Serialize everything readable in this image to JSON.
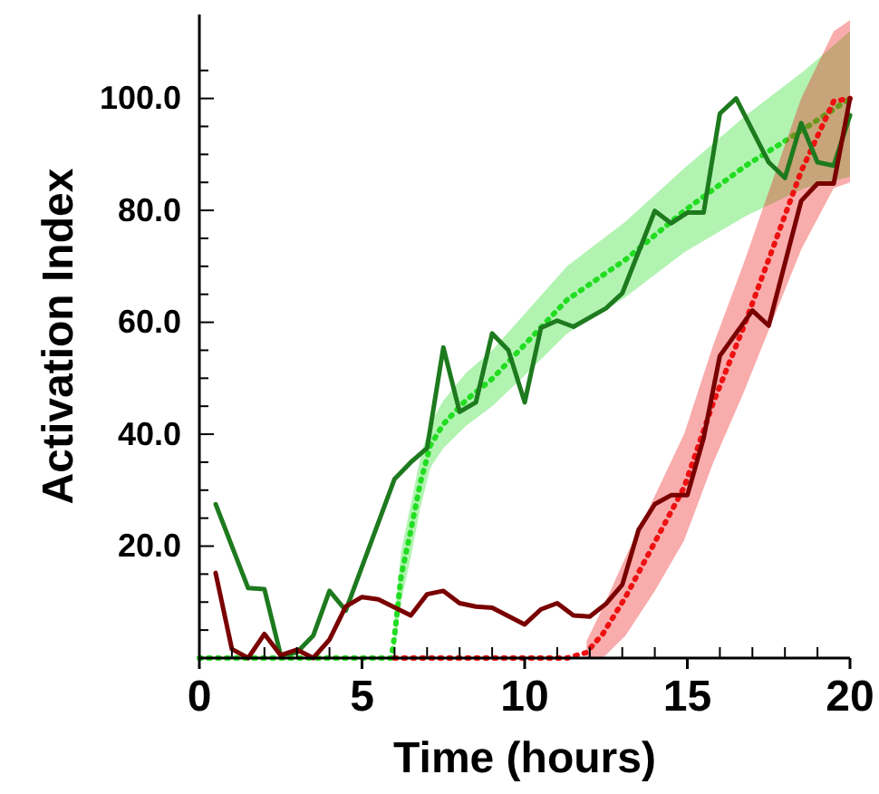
{
  "chart_data": {
    "type": "line",
    "xlabel": "Time (hours)",
    "ylabel": "Activation Index",
    "xlim": [
      0,
      20
    ],
    "ylim": [
      0,
      115
    ],
    "xticks": [
      0,
      {
        "value": 1,
        "label": null
      },
      {
        "value": 2,
        "label": null
      },
      {
        "value": 3,
        "label": null
      },
      {
        "value": 4,
        "label": null
      },
      5,
      {
        "value": 6,
        "label": null
      },
      {
        "value": 7,
        "label": null
      },
      {
        "value": 8,
        "label": null
      },
      {
        "value": 9,
        "label": null
      },
      10,
      {
        "value": 11,
        "label": null
      },
      {
        "value": 12,
        "label": null
      },
      {
        "value": 13,
        "label": null
      },
      {
        "value": 14,
        "label": null
      },
      15,
      {
        "value": 16,
        "label": null
      },
      {
        "value": 17,
        "label": null
      },
      {
        "value": 18,
        "label": null
      },
      {
        "value": 19,
        "label": null
      },
      20
    ],
    "yticks": [
      {
        "value": 5,
        "label": null
      },
      {
        "value": 10,
        "label": null
      },
      {
        "value": 15,
        "label": null
      },
      {
        "value": 20,
        "label": "20.0"
      },
      {
        "value": 25,
        "label": null
      },
      {
        "value": 30,
        "label": null
      },
      {
        "value": 35,
        "label": null
      },
      {
        "value": 40,
        "label": "40.0"
      },
      {
        "value": 45,
        "label": null
      },
      {
        "value": 50,
        "label": null
      },
      {
        "value": 55,
        "label": null
      },
      {
        "value": 60,
        "label": "60.0"
      },
      {
        "value": 65,
        "label": null
      },
      {
        "value": 70,
        "label": null
      },
      {
        "value": 75,
        "label": null
      },
      {
        "value": 80,
        "label": "80.0"
      },
      {
        "value": 85,
        "label": null
      },
      {
        "value": 90,
        "label": null
      },
      {
        "value": 95,
        "label": null
      },
      {
        "value": 100,
        "label": "100.0"
      },
      {
        "value": 105,
        "label": null
      }
    ],
    "grid": false,
    "marker": "none",
    "series": [
      {
        "line_style": "dotted",
        "color": "#22dd22",
        "x": [
          0,
          5.9,
          6.0,
          6.2,
          6.5,
          6.8,
          7.1,
          7.5,
          8.2,
          9,
          10,
          11.3,
          13.1,
          14.9,
          16.8,
          18.6,
          20
        ],
        "values": [
          0,
          0,
          4,
          14.6,
          22.8,
          31.5,
          38,
          41.8,
          46.1,
          49.9,
          56,
          64,
          71.2,
          79.9,
          88,
          94.6,
          100
        ],
        "lower": [
          null,
          null,
          1,
          10,
          18,
          27,
          34,
          37.5,
          41.5,
          45,
          50.5,
          58,
          64.5,
          72.5,
          79,
          84,
          86
        ],
        "upper": [
          null,
          null,
          7,
          19,
          27.5,
          36,
          42,
          46,
          51,
          55,
          61.5,
          70,
          78,
          87.5,
          97,
          105,
          112
        ]
      },
      {
        "line_style": "dotted",
        "color": "#ee1111",
        "x": [
          6,
          11.3,
          11.9,
          12.4,
          13.1,
          14.0,
          14.9,
          15.8,
          16.7,
          17.6,
          18.5,
          19.5,
          20
        ],
        "values": [
          0,
          0,
          1,
          4.3,
          10.9,
          20.7,
          30.5,
          45.7,
          58.7,
          72.8,
          87,
          99.5,
          100
        ],
        "lower": [
          null,
          null,
          0,
          0,
          4,
          12,
          21,
          35,
          47,
          60,
          73,
          84,
          85
        ],
        "upper": [
          null,
          null,
          3,
          9,
          18,
          29,
          40,
          56,
          70,
          85,
          100,
          112,
          114
        ]
      },
      {
        "line_style": "solid",
        "color": "#1e7a1e",
        "x": [
          0.5,
          1.5,
          2,
          2.5,
          3,
          3.5,
          4,
          4.5,
          6,
          6.5,
          7,
          7.5,
          8,
          8.5,
          9,
          9.5,
          10,
          10.5,
          11,
          11.5,
          12.5,
          13,
          14,
          14.5,
          15,
          15.5,
          16,
          16.5,
          17.5,
          18,
          18.5,
          19,
          19.5,
          20
        ],
        "values": [
          27.5,
          12.5,
          12.3,
          0.5,
          1,
          4,
          12,
          8.5,
          32,
          35,
          37.5,
          55.5,
          44,
          45.7,
          58,
          55,
          45.7,
          59,
          60.3,
          59.2,
          62.5,
          65.2,
          79.9,
          77.7,
          79.6,
          79.6,
          97.3,
          100,
          88.6,
          85.8,
          95.6,
          88.6,
          88,
          97
        ]
      },
      {
        "line_style": "solid",
        "color": "#7a0000",
        "x": [
          0.5,
          1,
          1.5,
          2,
          2.5,
          3,
          3.5,
          4,
          4.5,
          5,
          5.5,
          6.5,
          7,
          7.5,
          8,
          8.5,
          9,
          10,
          10.5,
          11,
          11.5,
          12,
          12.5,
          13,
          13.5,
          14,
          14.5,
          15,
          15.5,
          16,
          17,
          17.5,
          18.5,
          19,
          19.5,
          20
        ],
        "values": [
          15.2,
          1.6,
          0,
          4.3,
          0.5,
          1.5,
          0,
          3.3,
          9.2,
          10.9,
          10.5,
          7.6,
          11.4,
          12,
          9.8,
          9.2,
          9,
          6,
          8.7,
          9.8,
          7.6,
          7.4,
          9.7,
          13.1,
          22.9,
          27.5,
          29.1,
          29.1,
          39.3,
          54,
          62.1,
          59.4,
          81.7,
          84.8,
          84.8,
          100
        ]
      }
    ]
  }
}
